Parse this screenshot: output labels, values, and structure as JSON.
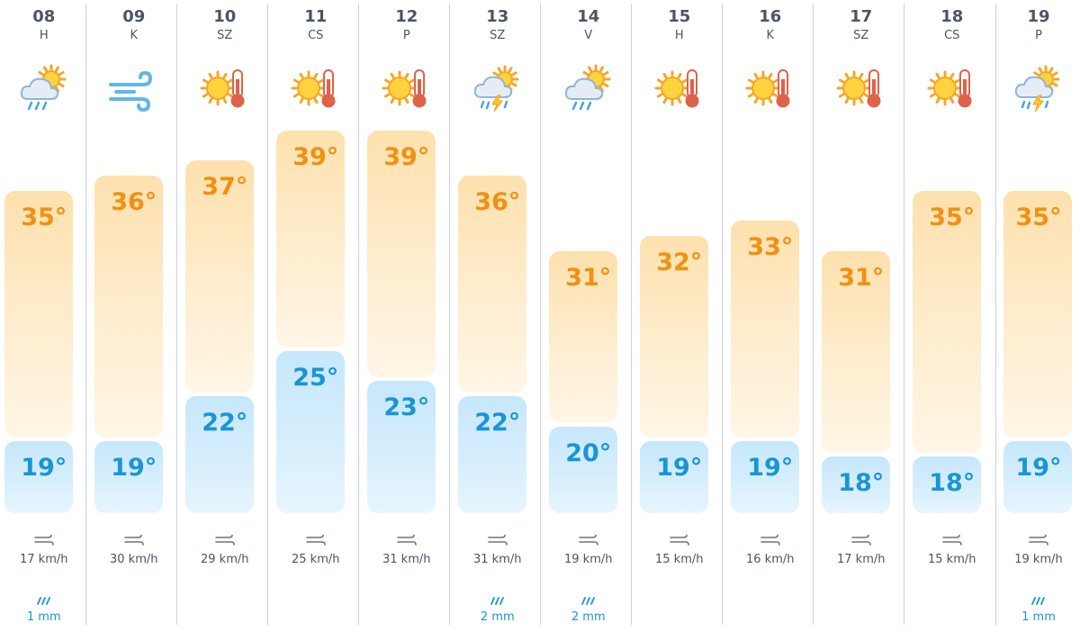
{
  "colors": {
    "high_text": "#f19012",
    "low_text": "#1a95d6",
    "high_bar": "#fde1ae",
    "low_bar": "#c6e7fb",
    "label_text": "#4b5563",
    "divider": "#c9d3dc"
  },
  "days": [
    {
      "day": "08",
      "abbr": "H",
      "icon": "cloud-sun-rain-icon",
      "high": "35°",
      "low": "19°",
      "wind": "17 km/h",
      "rain": "1 mm"
    },
    {
      "day": "09",
      "abbr": "K",
      "icon": "wind-icon",
      "high": "36°",
      "low": "19°",
      "wind": "30 km/h",
      "rain": ""
    },
    {
      "day": "10",
      "abbr": "SZ",
      "icon": "sun-thermometer-icon",
      "high": "37°",
      "low": "22°",
      "wind": "29 km/h",
      "rain": ""
    },
    {
      "day": "11",
      "abbr": "CS",
      "icon": "sun-thermometer-icon",
      "high": "39°",
      "low": "25°",
      "wind": "25 km/h",
      "rain": ""
    },
    {
      "day": "12",
      "abbr": "P",
      "icon": "sun-thermometer-icon",
      "high": "39°",
      "low": "23°",
      "wind": "31 km/h",
      "rain": ""
    },
    {
      "day": "13",
      "abbr": "SZ",
      "icon": "thunderstorm-icon",
      "high": "36°",
      "low": "22°",
      "wind": "31 km/h",
      "rain": "2 mm"
    },
    {
      "day": "14",
      "abbr": "V",
      "icon": "cloud-sun-rain-icon",
      "high": "31°",
      "low": "20°",
      "wind": "19 km/h",
      "rain": "2 mm"
    },
    {
      "day": "15",
      "abbr": "H",
      "icon": "sun-thermometer-icon",
      "high": "32°",
      "low": "19°",
      "wind": "15 km/h",
      "rain": ""
    },
    {
      "day": "16",
      "abbr": "K",
      "icon": "sun-thermometer-icon",
      "high": "33°",
      "low": "19°",
      "wind": "16 km/h",
      "rain": ""
    },
    {
      "day": "17",
      "abbr": "SZ",
      "icon": "sun-thermometer-icon",
      "high": "31°",
      "low": "18°",
      "wind": "17 km/h",
      "rain": ""
    },
    {
      "day": "18",
      "abbr": "CS",
      "icon": "sun-thermometer-icon",
      "high": "35°",
      "low": "18°",
      "wind": "15 km/h",
      "rain": ""
    },
    {
      "day": "19",
      "abbr": "P",
      "icon": "thunderstorm-icon",
      "high": "35°",
      "low": "19°",
      "wind": "19 km/h",
      "rain": "1 mm"
    }
  ]
}
